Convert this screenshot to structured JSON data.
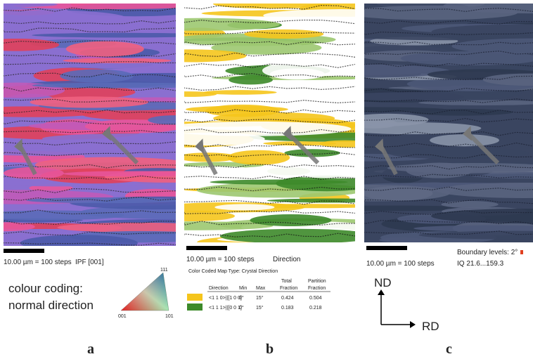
{
  "panels": [
    {
      "label": "a",
      "scale_bar": "10.00 µm = 100 steps",
      "map_type": "IPF [001]",
      "colour_coding": [
        "colour coding:",
        "normal direction"
      ],
      "triangle_labels": [
        "111",
        "001",
        "101"
      ]
    },
    {
      "label": "b",
      "scale_bar": "10.00 µm = 100 steps",
      "map_type": "Direction",
      "legend_title": "Color Coded Map Type: Crystal Direction",
      "table": {
        "header_top": [
          "Total",
          "Partition"
        ],
        "header": [
          "Direction",
          "Min",
          "Max",
          "Fraction",
          "Fraction"
        ],
        "rows": [
          [
            "<1 1 0>||[1 0 0]",
            "0°",
            "15°",
            "0.424",
            "0.504"
          ],
          [
            "<1 1 1>||[0 0 1]",
            "0°",
            "15°",
            "0.183",
            "0.218"
          ]
        ]
      }
    },
    {
      "label": "c",
      "scale_bar": "10.00 µm = 100 steps",
      "boundary_levels": "Boundary levels: 2°",
      "iq": "IQ 21.6...159.3",
      "axes": [
        "ND",
        "RD"
      ]
    }
  ]
}
